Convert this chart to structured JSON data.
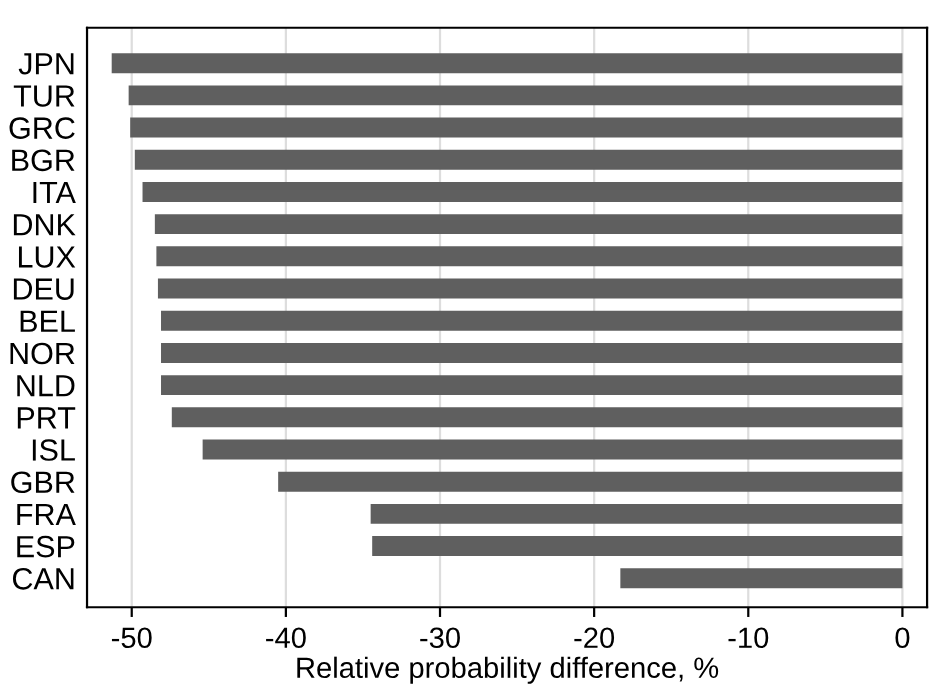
{
  "chart_data": {
    "type": "bar",
    "orientation": "horizontal",
    "xlabel": "Relative probability difference, %",
    "categories": [
      "JPN",
      "TUR",
      "GRC",
      "BGR",
      "ITA",
      "DNK",
      "LUX",
      "DEU",
      "BEL",
      "NOR",
      "NLD",
      "PRT",
      "ISL",
      "GBR",
      "FRA",
      "ESP",
      "CAN"
    ],
    "values": [
      -51.3,
      -50.2,
      -50.1,
      -49.8,
      -49.3,
      -48.5,
      -48.4,
      -48.3,
      -48.1,
      -48.1,
      -48.1,
      -47.4,
      -45.4,
      -40.5,
      -34.5,
      -34.4,
      -18.3
    ],
    "color": "#5f5f5f",
    "xlim": [
      -52.9,
      1.6
    ],
    "xticks": [
      -50,
      -40,
      -30,
      -20,
      -10,
      0
    ],
    "grid": "x",
    "legend": false
  }
}
